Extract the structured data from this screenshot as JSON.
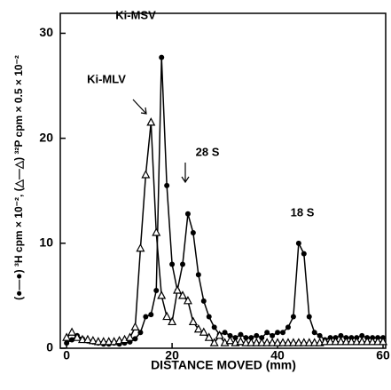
{
  "chart_data": {
    "type": "line",
    "x_label": "DISTANCE MOVED (mm)",
    "y_label": "(●—●) ³H cpm × 10⁻², (△—△) ³²P cpm × 0.5 × 10⁻²",
    "annotations": [
      "Ki-MSV",
      "Ki-MLV",
      "28 S",
      "18 S"
    ],
    "x": [
      0,
      1,
      2,
      3,
      4,
      5,
      6,
      7,
      8,
      9,
      10,
      11,
      12,
      13,
      14,
      15,
      16,
      17,
      18,
      19,
      20,
      21,
      22,
      23,
      24,
      25,
      26,
      27,
      28,
      29,
      30,
      31,
      32,
      33,
      34,
      35,
      36,
      37,
      38,
      39,
      40,
      41,
      42,
      43,
      44,
      45,
      46,
      47,
      48,
      49,
      50,
      51,
      52,
      53,
      54,
      55,
      56,
      57,
      58,
      59,
      60
    ],
    "series": [
      {
        "name": "³H",
        "color": "#000000",
        "marker": "circle",
        "values": [
          0.5,
          0.8,
          1.2,
          0.9,
          0.7,
          0.6,
          0.5,
          0.4,
          0.4,
          0.5,
          0.4,
          0.5,
          0.6,
          0.9,
          1.5,
          3.0,
          3.2,
          5.5,
          27.7,
          15.5,
          8,
          5.5,
          8,
          12.8,
          11,
          7,
          4.5,
          3,
          2,
          1.3,
          1.5,
          1.2,
          1,
          1.3,
          1,
          1,
          1.2,
          1,
          1.5,
          1.2,
          1.5,
          1.5,
          2,
          3,
          10,
          9,
          3,
          1.5,
          1.2,
          0.8,
          1,
          1,
          1.2,
          1,
          1,
          1,
          1.2,
          1,
          1,
          1,
          1
        ]
      },
      {
        "name": "³²P",
        "color": "#000000",
        "marker": "triangle",
        "values": [
          1,
          1.5,
          1,
          0.8,
          0.8,
          0.7,
          0.6,
          0.6,
          0.6,
          0.6,
          0.7,
          0.8,
          1,
          2,
          9.5,
          16.5,
          21.5,
          11,
          5,
          3,
          2.5,
          5.5,
          5,
          4.5,
          2.5,
          1.8,
          1.5,
          1,
          0.5,
          1.2,
          0.5,
          0.7,
          0.5,
          0.6,
          0.5,
          0.5,
          0.5,
          0.5,
          0.5,
          0.5,
          0.5,
          0.5,
          0.5,
          0.5,
          0.5,
          0.5,
          0.5,
          0.5,
          0.5,
          0.6,
          0.6,
          0.6,
          0.6,
          0.6,
          0.6,
          0.6,
          0.6,
          0.6,
          0.6,
          0.6,
          0.6
        ]
      }
    ],
    "xlim": [
      -1.2,
      60.5
    ],
    "ylim": [
      0,
      31.9
    ],
    "xticks": [
      0,
      20,
      40,
      60
    ],
    "yticks": [
      0,
      10,
      20,
      30
    ]
  }
}
